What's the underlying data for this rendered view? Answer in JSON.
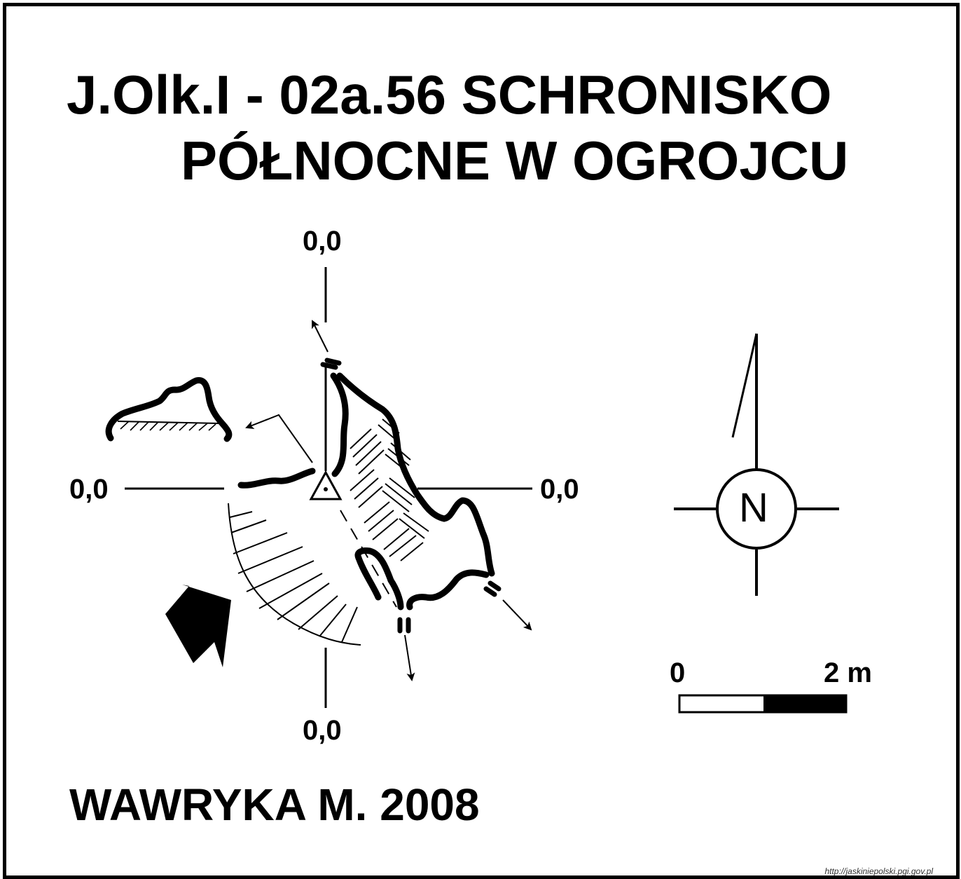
{
  "title": {
    "line1": "J.Olk.I - 02a.56  SCHRONISKO",
    "line2": "PÓŁNOCNE W OGROJCU"
  },
  "grid_labels": {
    "top": "0,0",
    "left": "0,0",
    "right": "0,0",
    "bottom": "0,0"
  },
  "compass": {
    "label": "N"
  },
  "scale_bar": {
    "start_label": "0",
    "end_label": "2 m"
  },
  "author": "WAWRYKA M. 2008",
  "source": "http://jaskiniepolski.pgi.gov.pl",
  "colors": {
    "ink": "#000000",
    "background": "#ffffff"
  }
}
